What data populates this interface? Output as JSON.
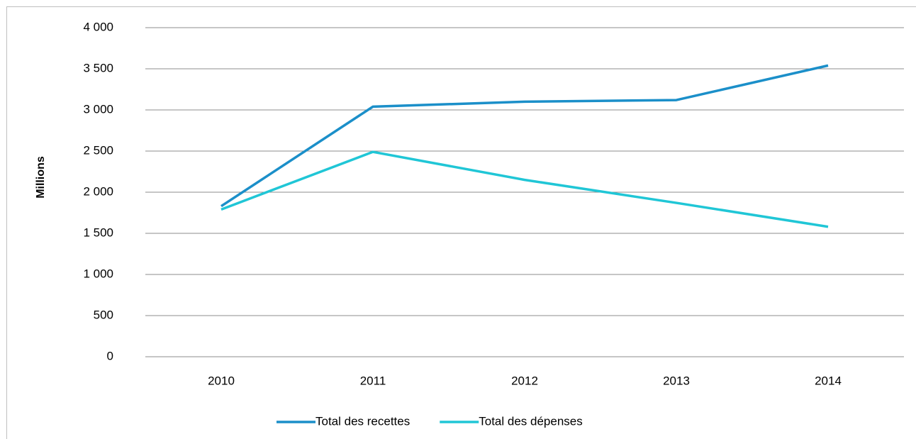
{
  "chart_data": {
    "type": "line",
    "y_label": "Millions",
    "categories": [
      "2010",
      "2011",
      "2012",
      "2013",
      "2014"
    ],
    "series": [
      {
        "name": "Total des recettes",
        "color": "#1b8fc9",
        "values": [
          1830,
          3040,
          3100,
          3120,
          3540
        ]
      },
      {
        "name": "Total des dépenses",
        "color": "#20c6d6",
        "values": [
          1790,
          2490,
          2150,
          1870,
          1580
        ]
      }
    ],
    "ylim": [
      0,
      4000
    ],
    "yticks": [
      0,
      500,
      {
        "value": 1000,
        "label": "1 000"
      },
      {
        "value": 1500,
        "label": "1 500"
      },
      {
        "value": 2000,
        "label": "2 000"
      },
      {
        "value": 2500,
        "label": "2 500"
      },
      {
        "value": 3000,
        "label": "3 000"
      },
      {
        "value": 3500,
        "label": "3 500"
      },
      {
        "value": 4000,
        "label": "4 000"
      }
    ],
    "grid": true,
    "legend": "bottom"
  }
}
